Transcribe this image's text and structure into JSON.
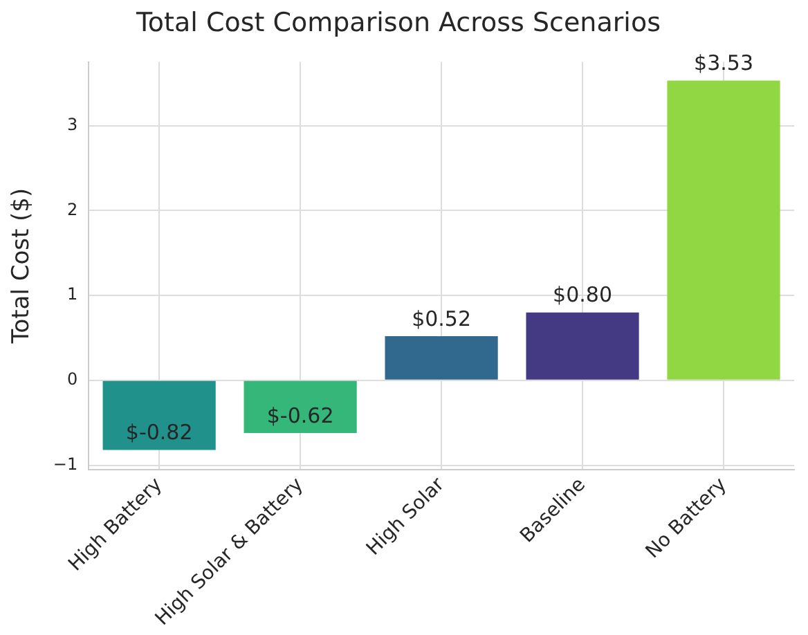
{
  "chart_data": {
    "type": "bar",
    "title": "Total Cost Comparison Across Scenarios",
    "ylabel": "Total Cost ($)",
    "categories": [
      "High Battery",
      "High Solar & Battery",
      "High Solar",
      "Baseline",
      "No Battery"
    ],
    "values": [
      -0.82,
      -0.62,
      0.52,
      0.8,
      3.53
    ],
    "colors": [
      "#21918c",
      "#35b779",
      "#31688e",
      "#443983",
      "#90d743"
    ],
    "value_labels": [
      "$-0.82",
      "$-0.62",
      "$0.52",
      "$0.80",
      "$3.53"
    ],
    "ylim": [
      -1.05,
      3.75
    ],
    "yticks": [
      {
        "value": -1,
        "label": "−1"
      },
      0,
      1,
      2,
      3
    ],
    "grid": true,
    "legend": false
  }
}
